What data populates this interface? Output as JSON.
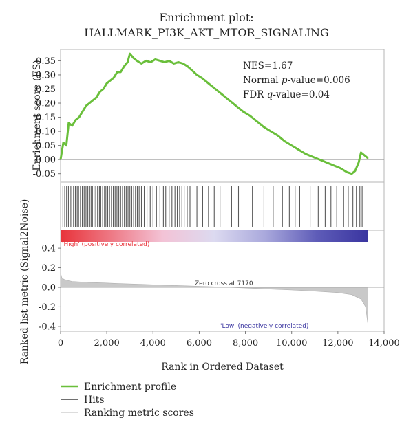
{
  "chart_data": {
    "title": "Enrichment plot:",
    "subtitle": "HALLMARK_PI3K_AKT_MTOR_SIGNALING",
    "xlabel": "Rank in Ordered Dataset",
    "xlim": [
      0,
      14000
    ],
    "xticks": [
      "0",
      "2,000",
      "4,000",
      "6,000",
      "8,000",
      "10,000",
      "12,000",
      "14,000"
    ],
    "panels": [
      {
        "type": "line",
        "name": "enrichment",
        "ylabel": "Enrichment score (ES)",
        "ylim": [
          -0.08,
          0.39
        ],
        "yticks": [
          "0.35",
          "0.30",
          "0.25",
          "0.20",
          "0.15",
          "0.10",
          "0.05",
          "0.00",
          "-0.05"
        ],
        "color": "#6abf3b",
        "x": [
          0,
          120,
          250,
          350,
          500,
          650,
          800,
          950,
          1100,
          1250,
          1400,
          1550,
          1700,
          1850,
          2000,
          2150,
          2300,
          2450,
          2600,
          2750,
          2900,
          3000,
          3150,
          3300,
          3500,
          3700,
          3900,
          4100,
          4300,
          4500,
          4700,
          4900,
          5100,
          5300,
          5500,
          5700,
          5900,
          6100,
          6400,
          6700,
          7000,
          7300,
          7600,
          7900,
          8200,
          8500,
          8800,
          9100,
          9400,
          9700,
          10000,
          10300,
          10600,
          10900,
          11200,
          11500,
          11800,
          12100,
          12400,
          12600,
          12750,
          12900,
          13000,
          13150,
          13300
        ],
        "y": [
          0.0,
          0.06,
          0.05,
          0.13,
          0.12,
          0.14,
          0.15,
          0.17,
          0.19,
          0.2,
          0.21,
          0.22,
          0.24,
          0.25,
          0.27,
          0.28,
          0.29,
          0.31,
          0.31,
          0.33,
          0.345,
          0.375,
          0.36,
          0.35,
          0.34,
          0.35,
          0.345,
          0.355,
          0.35,
          0.345,
          0.35,
          0.34,
          0.345,
          0.34,
          0.33,
          0.315,
          0.3,
          0.29,
          0.27,
          0.25,
          0.23,
          0.21,
          0.19,
          0.17,
          0.155,
          0.135,
          0.115,
          0.1,
          0.085,
          0.065,
          0.05,
          0.035,
          0.02,
          0.01,
          0.0,
          -0.01,
          -0.02,
          -0.03,
          -0.045,
          -0.05,
          -0.04,
          -0.01,
          0.025,
          0.015,
          0.005
        ]
      },
      {
        "type": "hits",
        "name": "hits",
        "color": "#5a5a5a",
        "positions": [
          100,
          180,
          260,
          340,
          420,
          480,
          560,
          640,
          720,
          780,
          860,
          940,
          1020,
          1100,
          1180,
          1260,
          1320,
          1380,
          1450,
          1520,
          1600,
          1680,
          1740,
          1820,
          1900,
          1960,
          2040,
          2120,
          2200,
          2280,
          2360,
          2440,
          2520,
          2600,
          2680,
          2760,
          2840,
          2920,
          3000,
          3080,
          3160,
          3240,
          3320,
          3400,
          3500,
          3620,
          3740,
          3880,
          4000,
          4150,
          4300,
          4450,
          4550,
          4700,
          4820,
          4950,
          5050,
          5150,
          5250,
          5350,
          5480,
          5600,
          5900,
          6150,
          6400,
          6650,
          6900,
          7400,
          7700,
          8300,
          8800,
          9200,
          9600,
          9900,
          10150,
          10350,
          10800,
          11150,
          11450,
          11700,
          11950,
          12250,
          12450,
          12650,
          12800,
          12950,
          13050
        ]
      },
      {
        "type": "heatmap",
        "name": "rank-colorbar",
        "gradient": [
          "#e8333a",
          "#ee7a86",
          "#f3c3d6",
          "#dcdaf0",
          "#a9a8dc",
          "#5e5cb8",
          "#3a35a0"
        ],
        "label_high": "'High' (positively correlated)",
        "label_low": "'Low' (negatively correlated)",
        "high_color": "#e8333a",
        "low_color": "#3a35a0"
      },
      {
        "type": "area",
        "name": "ranked-metric",
        "ylabel": "Ranked list metric (Signal2Noise)",
        "ylim": [
          -0.45,
          0.45
        ],
        "yticks": [
          "0.4",
          "0.2",
          "0.0",
          "-0.2",
          "-0.4"
        ],
        "color": "#c9c9c9",
        "x": [
          0,
          50,
          150,
          300,
          500,
          800,
          1200,
          1800,
          2500,
          3500,
          4500,
          5500,
          6500,
          7170,
          8000,
          9000,
          10000,
          11000,
          12000,
          12600,
          13000,
          13200,
          13300
        ],
        "y": [
          0.15,
          0.1,
          0.08,
          0.07,
          0.06,
          0.055,
          0.05,
          0.045,
          0.038,
          0.03,
          0.022,
          0.015,
          0.007,
          0.0,
          -0.008,
          -0.018,
          -0.028,
          -0.04,
          -0.055,
          -0.075,
          -0.12,
          -0.2,
          -0.38
        ],
        "annotation": "Zero cross at 7170"
      }
    ],
    "annotations": [
      "NES=1.67",
      "Normal",
      "p",
      "-value=0.006",
      "FDR",
      "q",
      "-value=0.04"
    ],
    "legend": {
      "placement": "bottom-left",
      "items": [
        {
          "label": "Enrichment profile",
          "color": "#6abf3b"
        },
        {
          "label": "Hits",
          "color": "#707070"
        },
        {
          "label": "Ranking metric scores",
          "color": "#dcdcdc"
        }
      ]
    }
  }
}
